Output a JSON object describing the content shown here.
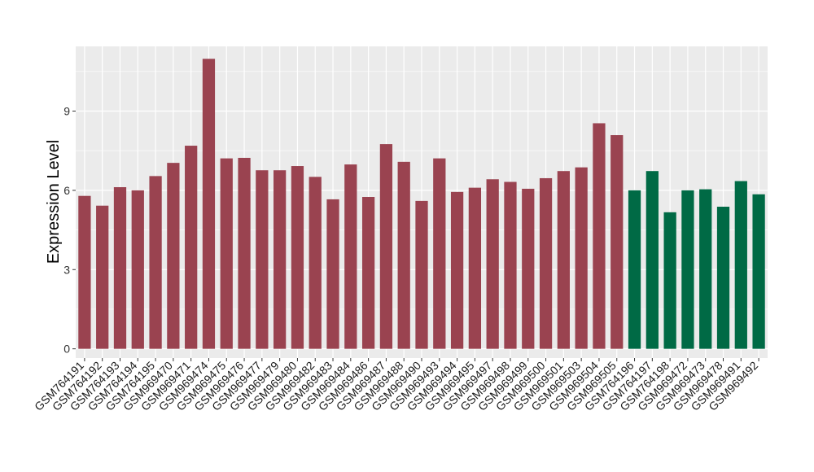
{
  "chart_data": {
    "type": "bar",
    "title": "",
    "xlabel": "",
    "ylabel": "Expression Level",
    "ylim": [
      -0.35,
      11.45
    ],
    "yticks": [
      0,
      3,
      6,
      9
    ],
    "grid": true,
    "legend": "none",
    "colors": {
      "group_a": "#9a4350",
      "group_b": "#006a45",
      "panel": "#ebebeb",
      "grid": "#ffffff"
    },
    "categories": [
      "GSM764191",
      "GSM764192",
      "GSM764193",
      "GSM764194",
      "GSM764195",
      "GSM969470",
      "GSM969471",
      "GSM969474",
      "GSM969475",
      "GSM969476",
      "GSM969477",
      "GSM969479",
      "GSM969480",
      "GSM969482",
      "GSM969483",
      "GSM969484",
      "GSM969486",
      "GSM969487",
      "GSM969488",
      "GSM969490",
      "GSM969493",
      "GSM969494",
      "GSM969495",
      "GSM969497",
      "GSM969498",
      "GSM969499",
      "GSM969500",
      "GSM969501",
      "GSM969503",
      "GSM969504",
      "GSM969505",
      "GSM764196",
      "GSM764197",
      "GSM764198",
      "GSM969472",
      "GSM969473",
      "GSM969478",
      "GSM969491",
      "GSM969492"
    ],
    "values": [
      5.79,
      5.42,
      6.12,
      6.0,
      6.54,
      7.04,
      7.69,
      10.98,
      7.21,
      7.23,
      6.76,
      6.76,
      6.92,
      6.51,
      5.66,
      6.98,
      5.75,
      7.75,
      7.08,
      5.6,
      7.21,
      5.94,
      6.1,
      6.42,
      6.32,
      6.06,
      6.46,
      6.73,
      6.87,
      8.54,
      8.09,
      6.0,
      6.73,
      5.17,
      6.0,
      6.04,
      5.38,
      6.35,
      5.85
    ],
    "groups": [
      "a",
      "a",
      "a",
      "a",
      "a",
      "a",
      "a",
      "a",
      "a",
      "a",
      "a",
      "a",
      "a",
      "a",
      "a",
      "a",
      "a",
      "a",
      "a",
      "a",
      "a",
      "a",
      "a",
      "a",
      "a",
      "a",
      "a",
      "a",
      "a",
      "a",
      "a",
      "b",
      "b",
      "b",
      "b",
      "b",
      "b",
      "b",
      "b"
    ]
  }
}
